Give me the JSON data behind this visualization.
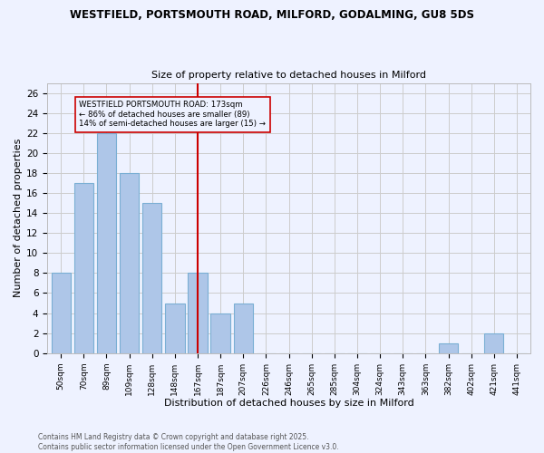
{
  "title1": "WESTFIELD, PORTSMOUTH ROAD, MILFORD, GODALMING, GU8 5DS",
  "title2": "Size of property relative to detached houses in Milford",
  "xlabel": "Distribution of detached houses by size in Milford",
  "ylabel": "Number of detached properties",
  "categories": [
    "50sqm",
    "70sqm",
    "89sqm",
    "109sqm",
    "128sqm",
    "148sqm",
    "167sqm",
    "187sqm",
    "207sqm",
    "226sqm",
    "246sqm",
    "265sqm",
    "285sqm",
    "304sqm",
    "324sqm",
    "343sqm",
    "363sqm",
    "382sqm",
    "402sqm",
    "421sqm",
    "441sqm"
  ],
  "values": [
    8,
    17,
    22,
    18,
    15,
    5,
    8,
    4,
    5,
    0,
    0,
    0,
    0,
    0,
    0,
    0,
    0,
    1,
    0,
    2,
    0
  ],
  "bar_color": "#aec6e8",
  "bar_edgecolor": "#7aafd4",
  "vline_x": 6,
  "vline_color": "#cc0000",
  "annotation_title": "WESTFIELD PORTSMOUTH ROAD: 173sqm",
  "annotation_line2": "← 86% of detached houses are smaller (89)",
  "annotation_line3": "14% of semi-detached houses are larger (15) →",
  "annotation_box_color": "#cc0000",
  "ylim": [
    0,
    27
  ],
  "yticks": [
    0,
    2,
    4,
    6,
    8,
    10,
    12,
    14,
    16,
    18,
    20,
    22,
    24,
    26
  ],
  "footer_line1": "Contains HM Land Registry data © Crown copyright and database right 2025.",
  "footer_line2": "Contains public sector information licensed under the Open Government Licence v3.0.",
  "bg_color": "#eef2ff",
  "grid_color": "#cccccc"
}
